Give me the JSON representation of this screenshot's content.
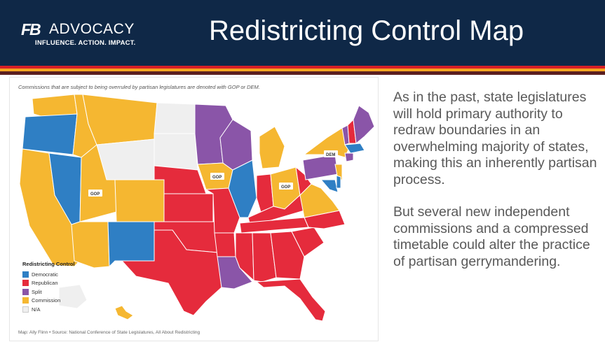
{
  "header": {
    "logo_mark": "FB",
    "logo_word": "ADVOCACY",
    "logo_tagline": "INFLUENCE. ACTION. IMPACT.",
    "title": "Redistricting Control Map"
  },
  "map": {
    "caption": "Commissions that are subject to being overruled by partisan legislatures are denoted with GOP or DEM.",
    "source": "Map: Ally Flinn • Source: National Conference of State Legislatures, All About Redistricting",
    "colors": {
      "democratic": "#2f7fc4",
      "republican": "#e52b3c",
      "split": "#8a55a8",
      "commission": "#f5b731",
      "na": "#efefef"
    },
    "legend": {
      "title": "Redistricting Control",
      "items": [
        {
          "label": "Democratic",
          "color": "#2f7fc4"
        },
        {
          "label": "Republican",
          "color": "#e52b3c"
        },
        {
          "label": "Split",
          "color": "#8a55a8"
        },
        {
          "label": "Commission",
          "color": "#f5b731"
        },
        {
          "label": "N/A",
          "color": "#efefef"
        }
      ]
    },
    "labels": {
      "utah": "GOP",
      "iowa": "GOP",
      "ohio": "GOP",
      "new_york": "DEM"
    }
  },
  "body": {
    "paragraph1": "As in the past, state legislatures will hold primary authority to redraw boundaries in an overwhelming majority of states, making this an inherently partisan process.",
    "paragraph2": "But several new independent commissions and a compressed timetable could alter the practice of partisan gerrymandering."
  }
}
